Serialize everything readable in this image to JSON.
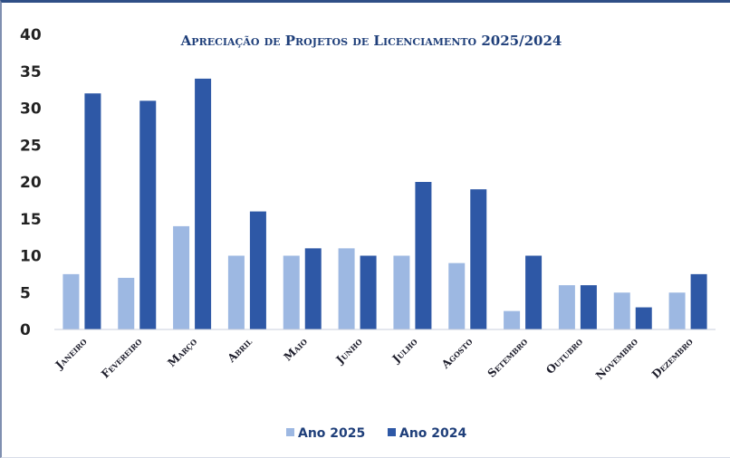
{
  "chart_data": {
    "type": "bar",
    "title": "Apreciação de Projetos de Licenciamento 2025/2024",
    "categories": [
      "Janeiro",
      "Fevereiro",
      "Março",
      "Abril",
      "Maio",
      "Junho",
      "Julho",
      "Agosto",
      "Setembro",
      "Outubro",
      "Novembro",
      "Dezembro"
    ],
    "series": [
      {
        "name": "Ano 2025",
        "color": "#9db8e2",
        "values": [
          7.5,
          7,
          14,
          10,
          10,
          11,
          10,
          9,
          2.5,
          6,
          5,
          5
        ]
      },
      {
        "name": "Ano 2024",
        "color": "#2e58a6",
        "values": [
          32,
          31,
          34,
          16,
          11,
          10,
          20,
          19,
          10,
          6,
          3,
          7.5
        ]
      }
    ],
    "ylim": [
      0,
      40
    ],
    "yticks": [
      0,
      5,
      10,
      15,
      20,
      25,
      30,
      35,
      40
    ],
    "grid": false,
    "legend": "bottom",
    "xlabel": "",
    "ylabel": ""
  }
}
